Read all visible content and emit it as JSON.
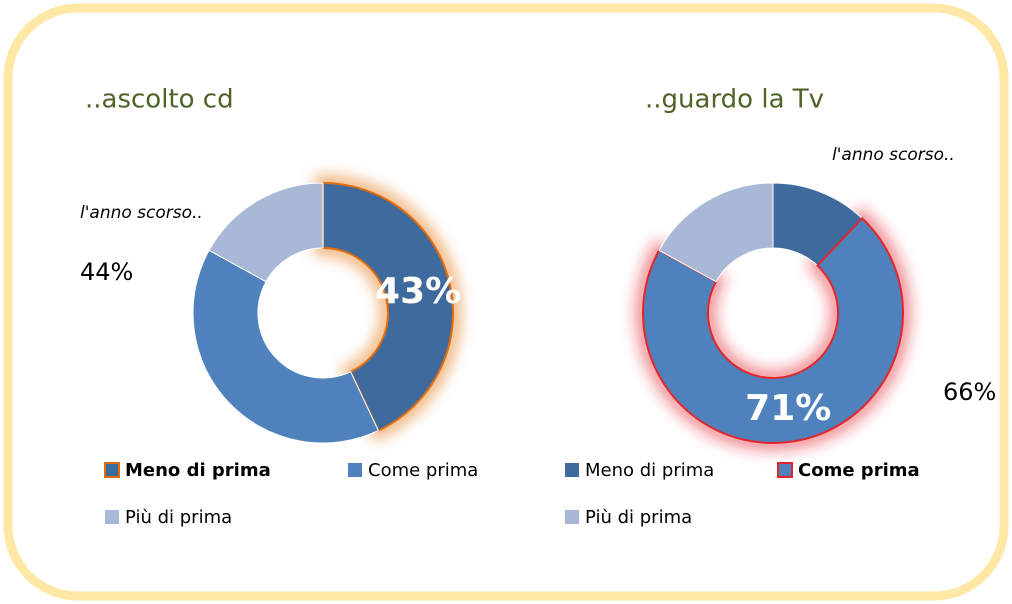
{
  "chart_data": [
    {
      "type": "donut",
      "title": "..ascolto cd",
      "categories": [
        "Meno di prima",
        "Come prima",
        "Più di prima"
      ],
      "values": [
        43,
        40,
        17
      ],
      "value_labels": [
        "43%",
        null,
        null
      ],
      "colors": [
        "#3f6a9e",
        "#4f81bd",
        "#a9b8d6"
      ],
      "highlight": 0,
      "highlight_color": "#e36c09",
      "annotations": [
        "l'anno scorso..",
        "44%"
      ]
    },
    {
      "type": "donut",
      "title": "..guardo la Tv",
      "categories": [
        "Meno di prima",
        "Come prima",
        "Più di prima"
      ],
      "values": [
        12,
        71,
        17
      ],
      "value_labels": [
        null,
        "71%",
        null
      ],
      "colors": [
        "#3f6a9e",
        "#4f81bd",
        "#a9b8d6"
      ],
      "highlight": 1,
      "highlight_color": "#e3262b",
      "annotations": [
        "l'anno scorso..",
        "66%"
      ]
    }
  ]
}
